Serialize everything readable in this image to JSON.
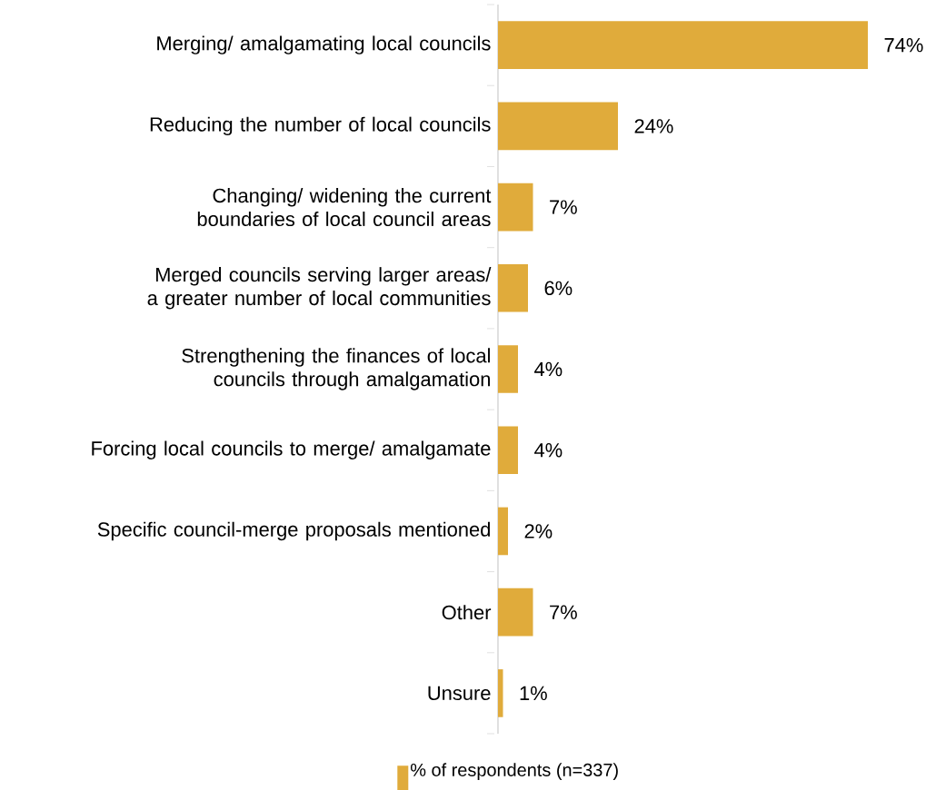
{
  "chart_data": {
    "type": "bar",
    "orientation": "horizontal",
    "categories": [
      "Merging/ amalgamating local councils",
      "Reducing the number of local councils",
      "Changing/ widening the current boundaries of local council areas",
      "Merged councils serving larger areas/ a greater number of local communities",
      "Strengthening the finances of local councils through amalgamation",
      "Forcing local councils to merge/ amalgamate",
      "Specific council-merge proposals mentioned",
      "Other",
      "Unsure"
    ],
    "series": [
      {
        "name": "% of respondents (n=337)",
        "color": "#e0ab3b",
        "values": [
          74,
          24,
          7,
          6,
          4,
          4,
          2,
          7,
          1
        ],
        "value_labels": [
          "74%",
          "24%",
          "7%",
          "6%",
          "4%",
          "4%",
          "2%",
          "7%",
          "1%"
        ]
      }
    ],
    "legend": "bottom"
  }
}
